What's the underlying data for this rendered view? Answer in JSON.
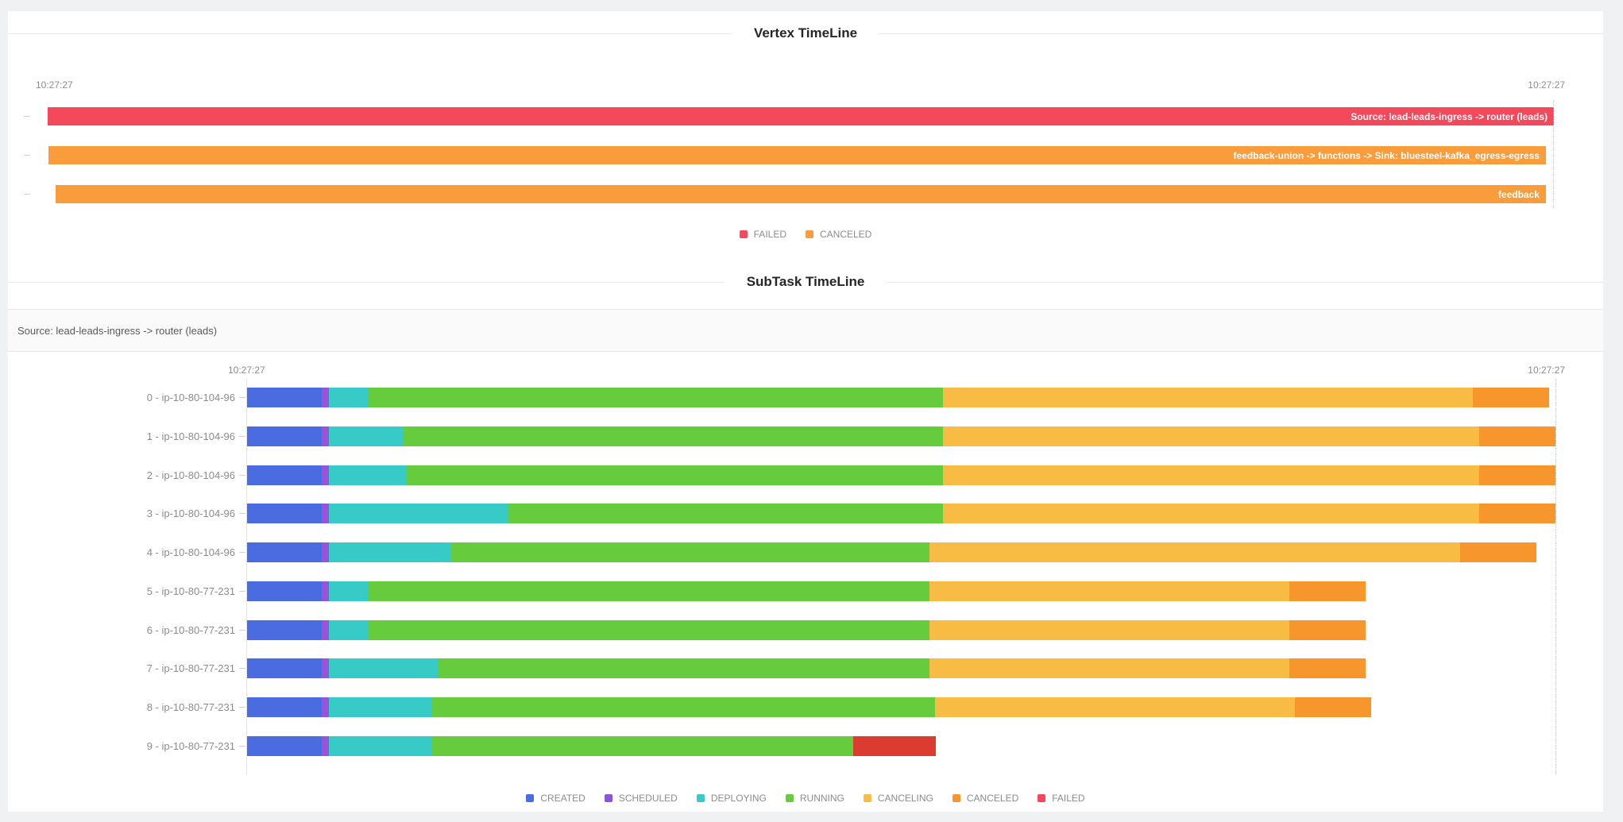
{
  "page": {
    "background": "#f0f1f3",
    "card_background": "#ffffff"
  },
  "chart_data": [
    {
      "type": "bar",
      "variant": "gantt-timeline",
      "title": "Vertex TimeLine",
      "x_axis": {
        "ticks": [
          "10:27:27",
          "10:27:27"
        ],
        "grid": "off"
      },
      "legend_position": "bottom-center",
      "legend": [
        {
          "label": "FAILED",
          "color": "#f4495b"
        },
        {
          "label": "CANCELED",
          "color": "#f89c3c"
        }
      ],
      "bars": [
        {
          "label": "Source: lead-leads-ingress -> router (leads)",
          "status": "FAILED",
          "color": "#f4495b",
          "start": 0.0,
          "end": 1.0
        },
        {
          "label": "feedback-union -> functions -> Sink: bluesteel-kafka_egress-egress",
          "status": "CANCELED",
          "color": "#f89c3c",
          "start": 0.0005,
          "end": 0.9947
        },
        {
          "label": "feedback",
          "status": "CANCELED",
          "color": "#f89c3c",
          "start": 0.0053,
          "end": 0.9947
        }
      ]
    },
    {
      "type": "bar",
      "variant": "stacked-gantt-timeline",
      "title": "SubTask TimeLine",
      "header": "Source: lead-leads-ingress -> router (leads)",
      "x_axis": {
        "ticks": [
          "10:27:27",
          "10:27:27"
        ],
        "grid": "off"
      },
      "legend_position": "bottom-center",
      "status_colors": {
        "CREATED": "#4a6ce0",
        "SCHEDULED": "#9b51d8",
        "DEPLOYING": "#38cac6",
        "RUNNING": "#66cb3d",
        "CANCELING": "#f8bc45",
        "CANCELED": "#f8962e",
        "FAILED": "#dc3c30"
      },
      "legend": [
        {
          "label": "CREATED",
          "color": "#4a6ce0"
        },
        {
          "label": "SCHEDULED",
          "color": "#8c54e0"
        },
        {
          "label": "DEPLOYING",
          "color": "#38cac6"
        },
        {
          "label": "RUNNING",
          "color": "#66cb3d"
        },
        {
          "label": "CANCELING",
          "color": "#f8bc45"
        },
        {
          "label": "CANCELED",
          "color": "#f8962e"
        },
        {
          "label": "FAILED",
          "color": "#f5475b"
        }
      ],
      "rows": [
        {
          "label": "0 - ip-10-80-104-96",
          "segments": [
            [
              "CREATED",
              0,
              0.057
            ],
            [
              "SCHEDULED",
              0.057,
              0.0625
            ],
            [
              "DEPLOYING",
              0.0625,
              0.0922
            ],
            [
              "RUNNING",
              0.0922,
              0.5316
            ],
            [
              "CANCELING",
              0.5316,
              0.9369
            ],
            [
              "CANCELED",
              0.9369,
              0.9951
            ]
          ]
        },
        {
          "label": "1 - ip-10-80-104-96",
          "segments": [
            [
              "CREATED",
              0,
              0.057
            ],
            [
              "SCHEDULED",
              0.057,
              0.0625
            ],
            [
              "DEPLOYING",
              0.0625,
              0.1195
            ],
            [
              "RUNNING",
              0.1195,
              0.5316
            ],
            [
              "CANCELING",
              0.5316,
              0.9417
            ],
            [
              "CANCELED",
              0.9417,
              1.0
            ]
          ]
        },
        {
          "label": "2 - ip-10-80-104-96",
          "segments": [
            [
              "CREATED",
              0,
              0.057
            ],
            [
              "SCHEDULED",
              0.057,
              0.0625
            ],
            [
              "DEPLOYING",
              0.0625,
              0.1214
            ],
            [
              "RUNNING",
              0.1214,
              0.5316
            ],
            [
              "CANCELING",
              0.5316,
              0.9417
            ],
            [
              "CANCELED",
              0.9417,
              1.0
            ]
          ]
        },
        {
          "label": "3 - ip-10-80-104-96",
          "segments": [
            [
              "CREATED",
              0,
              0.057
            ],
            [
              "SCHEDULED",
              0.057,
              0.0625
            ],
            [
              "DEPLOYING",
              0.0625,
              0.199
            ],
            [
              "RUNNING",
              0.199,
              0.5316
            ],
            [
              "CANCELING",
              0.5316,
              0.9417
            ],
            [
              "CANCELED",
              0.9417,
              1.0
            ]
          ]
        },
        {
          "label": "4 - ip-10-80-104-96",
          "segments": [
            [
              "CREATED",
              0,
              0.057
            ],
            [
              "SCHEDULED",
              0.057,
              0.0625
            ],
            [
              "DEPLOYING",
              0.0625,
              0.156
            ],
            [
              "RUNNING",
              0.156,
              0.5213
            ],
            [
              "CANCELING",
              0.5213,
              0.9272
            ],
            [
              "CANCELED",
              0.9272,
              0.9854
            ]
          ]
        },
        {
          "label": "5 - ip-10-80-77-231",
          "segments": [
            [
              "CREATED",
              0,
              0.057
            ],
            [
              "SCHEDULED",
              0.057,
              0.0625
            ],
            [
              "DEPLOYING",
              0.0625,
              0.0922
            ],
            [
              "RUNNING",
              0.0922,
              0.5213
            ],
            [
              "CANCELING",
              0.5213,
              0.7967
            ],
            [
              "CANCELED",
              0.7967,
              0.855
            ]
          ]
        },
        {
          "label": "6 - ip-10-80-77-231",
          "segments": [
            [
              "CREATED",
              0,
              0.057
            ],
            [
              "SCHEDULED",
              0.057,
              0.0625
            ],
            [
              "DEPLOYING",
              0.0625,
              0.0922
            ],
            [
              "RUNNING",
              0.0922,
              0.5213
            ],
            [
              "CANCELING",
              0.5213,
              0.7967
            ],
            [
              "CANCELED",
              0.7967,
              0.855
            ]
          ]
        },
        {
          "label": "7 - ip-10-80-77-231",
          "segments": [
            [
              "CREATED",
              0,
              0.057
            ],
            [
              "SCHEDULED",
              0.057,
              0.0625
            ],
            [
              "DEPLOYING",
              0.0625,
              0.1456
            ],
            [
              "RUNNING",
              0.1456,
              0.5213
            ],
            [
              "CANCELING",
              0.5213,
              0.7967
            ],
            [
              "CANCELED",
              0.7967,
              0.855
            ]
          ]
        },
        {
          "label": "8 - ip-10-80-77-231",
          "segments": [
            [
              "CREATED",
              0,
              0.057
            ],
            [
              "SCHEDULED",
              0.057,
              0.0625
            ],
            [
              "DEPLOYING",
              0.0625,
              0.1408
            ],
            [
              "RUNNING",
              0.1408,
              0.5261
            ],
            [
              "CANCELING",
              0.5261,
              0.801
            ],
            [
              "CANCELED",
              0.801,
              0.8592
            ]
          ]
        },
        {
          "label": "9 - ip-10-80-77-231",
          "segments": [
            [
              "CREATED",
              0,
              0.057
            ],
            [
              "SCHEDULED",
              0.057,
              0.0625
            ],
            [
              "DEPLOYING",
              0.0625,
              0.1408
            ],
            [
              "RUNNING",
              0.1408,
              0.463
            ],
            [
              "FAILED",
              0.463,
              0.5267
            ]
          ]
        }
      ]
    }
  ]
}
